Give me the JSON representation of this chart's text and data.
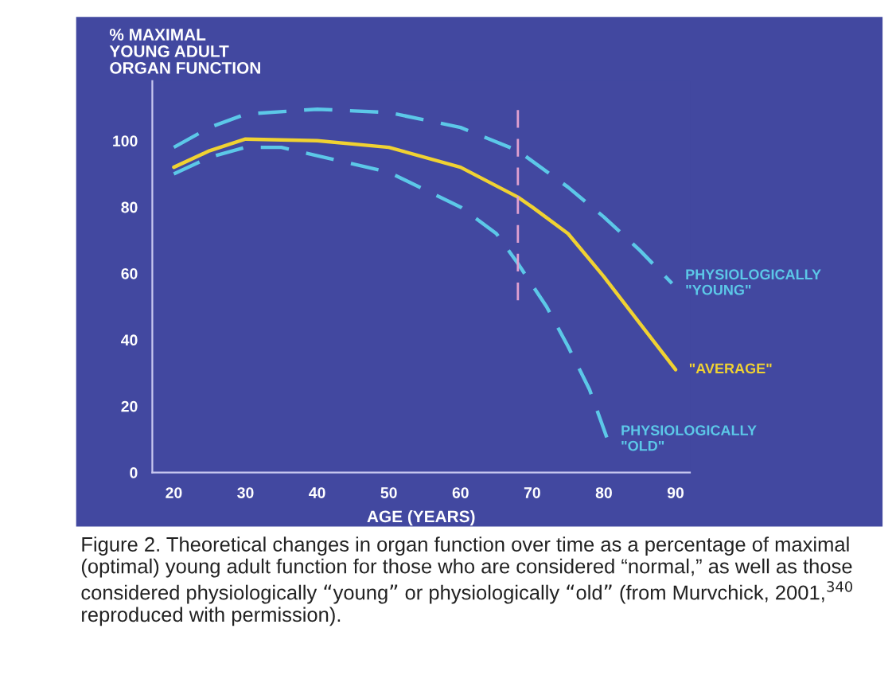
{
  "chart_data": {
    "type": "line",
    "ylabel": "% MAXIMAL\nYOUNG ADULT\nORGAN FUNCTION",
    "xlabel": "AGE (YEARS)",
    "annotations": [
      "Figure 2. Theoretical changes in organ function over time as a percentage of maximal (optimal) young adult function for those who are considered “normal,” as well as those considered physiologically “young” or physiologically “old” (from Murvchick, 2001,$^{340}$ reproduced with permission)."
    ],
    "series": [
      {
        "name": "PHYSIOLOGICALLY\n\"YOUNG\"",
        "color": "#5cc8e8",
        "line_style": "dashed",
        "x": [
          20,
          25,
          30,
          40,
          50,
          60,
          68,
          75,
          80,
          85,
          89.5
        ],
        "values": [
          98,
          104,
          108,
          109.5,
          108.5,
          104,
          97,
          86,
          77,
          67,
          57
        ]
      },
      {
        "name": "\"AVERAGE\"",
        "color": "#f0d232",
        "line_style": "solid",
        "x": [
          20,
          25,
          30,
          40,
          50,
          60,
          68,
          70,
          75,
          80,
          85,
          90
        ],
        "values": [
          92,
          97,
          100.5,
          100,
          98,
          92,
          83,
          80,
          72,
          59,
          45,
          31
        ]
      },
      {
        "name": "PHYSIOLOGICALLY\n\"OLD\"",
        "color": "#5cc8e8",
        "line_style": "dashed",
        "x": [
          20,
          25,
          30,
          35,
          40,
          50,
          60,
          65,
          68,
          72,
          75,
          78,
          80.5
        ],
        "values": [
          90,
          95,
          98,
          98,
          95.5,
          90.5,
          80,
          72,
          63,
          50,
          38,
          25,
          10
        ]
      }
    ],
    "ref_lines": [
      {
        "axis": "x",
        "value": 68,
        "color": "#e0a0d0",
        "line_style": "dashed"
      }
    ],
    "xlim": [
      17,
      92
    ],
    "ylim": [
      0,
      118
    ],
    "xticks": [
      20,
      30,
      40,
      50,
      60,
      70,
      80,
      90
    ],
    "yticks": [
      0,
      20,
      40,
      60,
      80,
      100
    ],
    "grid": false,
    "legend": false
  }
}
